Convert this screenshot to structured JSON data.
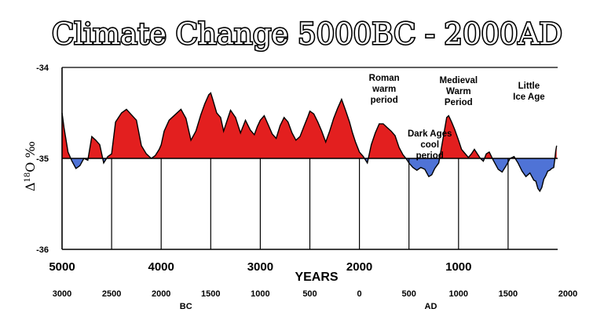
{
  "chart_data": {
    "type": "area",
    "title": "Climate Change 5000BC - 2000AD",
    "xlabel": "YEARS",
    "ylabel_symbol": "Δ",
    "ylabel_sup": "18",
    "ylabel_main": "O ‰",
    "ylim": [
      -36,
      -34
    ],
    "baseline": -35,
    "y_ticks": [
      "-34",
      "-35",
      "-36"
    ],
    "x_ticks_bp": [
      "5000",
      "4000",
      "3000",
      "2000",
      "1000"
    ],
    "x_ticks_bp_values": [
      5000,
      4000,
      3000,
      2000,
      1000
    ],
    "calendar_ticks": [
      "3000",
      "2500",
      "2000",
      "1500",
      "1000",
      "500",
      "0",
      "500",
      "1000",
      "1500",
      "2000"
    ],
    "calendar_tick_bp": [
      5000,
      4500,
      4000,
      3500,
      3000,
      2500,
      2000,
      1500,
      1000,
      500,
      0
    ],
    "era_labels": [
      {
        "text": "BC",
        "bp": 3750
      },
      {
        "text": "AD",
        "bp": 1280
      }
    ],
    "colors": {
      "above": "#e31f1f",
      "below": "#4f73d6",
      "line": "#000000"
    },
    "annotations": [
      {
        "lines": [
          "Roman",
          "warm",
          "period"
        ],
        "bp": 1750
      },
      {
        "lines": [
          "Medieval",
          "Warm",
          "Period"
        ],
        "bp": 1000
      },
      {
        "lines": [
          "Little",
          "Ice Age"
        ],
        "bp": 290
      },
      {
        "lines": [
          "Dark Ages",
          "cool",
          "period"
        ],
        "bp": 1290
      }
    ],
    "series": [
      {
        "name": "delta 18O (per mil)",
        "x_bp": [
          5000,
          4980,
          4940,
          4900,
          4860,
          4820,
          4780,
          4740,
          4700,
          4660,
          4620,
          4580,
          4540,
          4500,
          4460,
          4400,
          4350,
          4300,
          4250,
          4200,
          4150,
          4100,
          4060,
          4020,
          4000,
          3970,
          3920,
          3860,
          3800,
          3750,
          3700,
          3650,
          3600,
          3560,
          3520,
          3500,
          3480,
          3440,
          3400,
          3370,
          3340,
          3300,
          3250,
          3200,
          3150,
          3100,
          3060,
          3030,
          3000,
          2960,
          2920,
          2880,
          2840,
          2800,
          2760,
          2720,
          2680,
          2640,
          2600,
          2560,
          2520,
          2500,
          2460,
          2420,
          2380,
          2340,
          2300,
          2260,
          2220,
          2180,
          2140,
          2100,
          2070,
          2040,
          2000,
          1960,
          1920,
          1880,
          1840,
          1800,
          1760,
          1720,
          1680,
          1640,
          1600,
          1560,
          1530,
          1500,
          1460,
          1420,
          1380,
          1340,
          1300,
          1270,
          1240,
          1200,
          1170,
          1140,
          1120,
          1100,
          1070,
          1040,
          1000,
          970,
          940,
          900,
          870,
          840,
          810,
          780,
          750,
          720,
          690,
          650,
          600,
          560,
          520,
          480,
          440,
          400,
          360,
          320,
          280,
          240,
          220,
          200,
          180,
          160,
          140,
          120,
          100,
          80,
          60,
          40,
          30,
          20,
          10
        ],
        "values": [
          -34.5,
          -34.66,
          -34.93,
          -35.03,
          -35.11,
          -35.08,
          -35.0,
          -35.02,
          -34.76,
          -34.8,
          -34.85,
          -35.05,
          -34.98,
          -34.95,
          -34.6,
          -34.5,
          -34.46,
          -34.52,
          -34.58,
          -34.86,
          -34.95,
          -35.0,
          -34.97,
          -34.9,
          -34.85,
          -34.7,
          -34.58,
          -34.52,
          -34.46,
          -34.56,
          -34.8,
          -34.7,
          -34.52,
          -34.4,
          -34.3,
          -34.28,
          -34.35,
          -34.5,
          -34.55,
          -34.7,
          -34.6,
          -34.47,
          -34.55,
          -34.72,
          -34.58,
          -34.69,
          -34.74,
          -34.65,
          -34.58,
          -34.53,
          -34.63,
          -34.73,
          -34.78,
          -34.64,
          -34.55,
          -34.6,
          -34.72,
          -34.8,
          -34.76,
          -34.65,
          -34.54,
          -34.48,
          -34.51,
          -34.6,
          -34.7,
          -34.82,
          -34.7,
          -34.56,
          -34.45,
          -34.35,
          -34.47,
          -34.6,
          -34.72,
          -34.82,
          -34.93,
          -34.98,
          -35.05,
          -34.85,
          -34.72,
          -34.62,
          -34.62,
          -34.66,
          -34.7,
          -34.75,
          -34.88,
          -34.96,
          -35.0,
          -35.05,
          -35.1,
          -35.13,
          -35.1,
          -35.12,
          -35.2,
          -35.18,
          -35.11,
          -35.05,
          -34.87,
          -34.68,
          -34.55,
          -34.53,
          -34.6,
          -34.68,
          -34.8,
          -34.9,
          -34.94,
          -34.99,
          -34.95,
          -34.9,
          -34.95,
          -35.0,
          -35.03,
          -34.95,
          -34.93,
          -35.02,
          -35.12,
          -35.15,
          -35.08,
          -35.0,
          -34.98,
          -35.05,
          -35.14,
          -35.2,
          -35.16,
          -35.24,
          -35.25,
          -35.33,
          -35.36,
          -35.32,
          -35.23,
          -35.19,
          -35.14,
          -35.13,
          -35.11,
          -35.1,
          -35.02,
          -34.92,
          -34.86
        ]
      }
    ]
  }
}
